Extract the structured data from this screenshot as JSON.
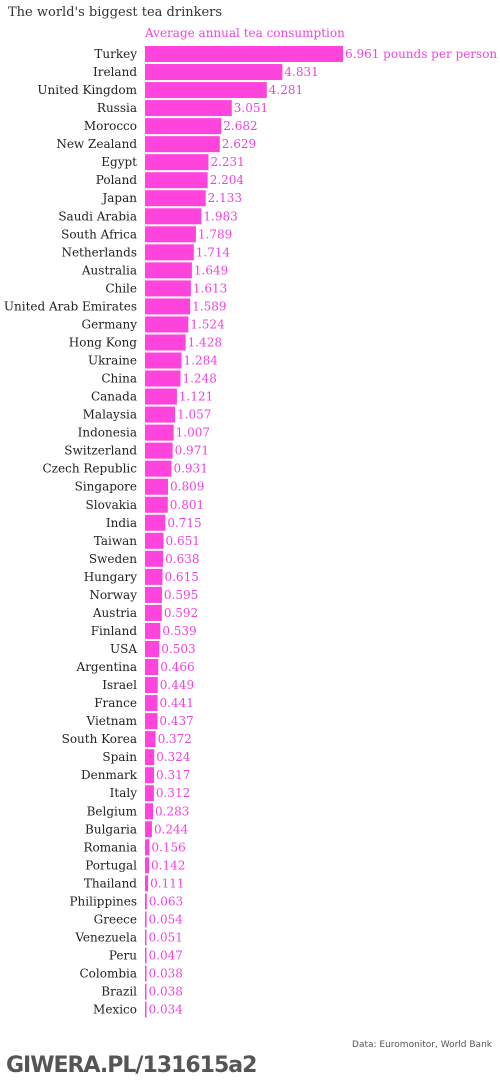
{
  "chart_data": {
    "type": "bar",
    "orientation": "horizontal",
    "title": "The world's biggest tea drinkers",
    "subtitle": "Average annual tea consumption",
    "first_label_suffix": " pounds per person",
    "bar_color": "#ff44dd",
    "label_color": "#ee44dd",
    "categories": [
      "Turkey",
      "Ireland",
      "United Kingdom",
      "Russia",
      "Morocco",
      "New Zealand",
      "Egypt",
      "Poland",
      "Japan",
      "Saudi Arabia",
      "South Africa",
      "Netherlands",
      "Australia",
      "Chile",
      "United Arab Emirates",
      "Germany",
      "Hong Kong",
      "Ukraine",
      "China",
      "Canada",
      "Malaysia",
      "Indonesia",
      "Switzerland",
      "Czech Republic",
      "Singapore",
      "Slovakia",
      "India",
      "Taiwan",
      "Sweden",
      "Hungary",
      "Norway",
      "Austria",
      "Finland",
      "USA",
      "Argentina",
      "Israel",
      "France",
      "Vietnam",
      "South Korea",
      "Spain",
      "Denmark",
      "Italy",
      "Belgium",
      "Bulgaria",
      "Romania",
      "Portugal",
      "Thailand",
      "Philippines",
      "Greece",
      "Venezuela",
      "Peru",
      "Colombia",
      "Brazil",
      "Mexico"
    ],
    "values": [
      6.961,
      4.831,
      4.281,
      3.051,
      2.682,
      2.629,
      2.231,
      2.204,
      2.133,
      1.983,
      1.789,
      1.714,
      1.649,
      1.613,
      1.589,
      1.524,
      1.428,
      1.284,
      1.248,
      1.121,
      1.057,
      1.007,
      0.971,
      0.931,
      0.809,
      0.801,
      0.715,
      0.651,
      0.638,
      0.615,
      0.595,
      0.592,
      0.539,
      0.503,
      0.466,
      0.449,
      0.441,
      0.437,
      0.372,
      0.324,
      0.317,
      0.312,
      0.283,
      0.244,
      0.156,
      0.142,
      0.111,
      0.063,
      0.054,
      0.051,
      0.047,
      0.038,
      0.038,
      0.034
    ],
    "value_labels": [
      "6.961",
      "4.831",
      "4.281",
      "3.051",
      "2.682",
      "2.629",
      "2.231",
      "2.204",
      "2.133",
      "1.983",
      "1.789",
      "1.714",
      "1.649",
      "1.613",
      "1.589",
      "1.524",
      "1.428",
      "1.284",
      "1.248",
      "1.121",
      "1.057",
      "1.007",
      "0.971",
      "0.931",
      "0.809",
      "0.801",
      "0.715",
      "0.651",
      "0.638",
      "0.615",
      "0.595",
      "0.592",
      "0.539",
      "0.503",
      "0.466",
      "0.449",
      "0.441",
      "0.437",
      "0.372",
      "0.324",
      "0.317",
      "0.312",
      "0.283",
      "0.244",
      "0.156",
      "0.142",
      "0.111",
      "0.063",
      "0.054",
      "0.051",
      "0.047",
      "0.038",
      "0.038",
      "0.034"
    ]
  },
  "source": "Data: Euromonitor, World Bank",
  "watermark": "GIWERA.PL/131615a2"
}
